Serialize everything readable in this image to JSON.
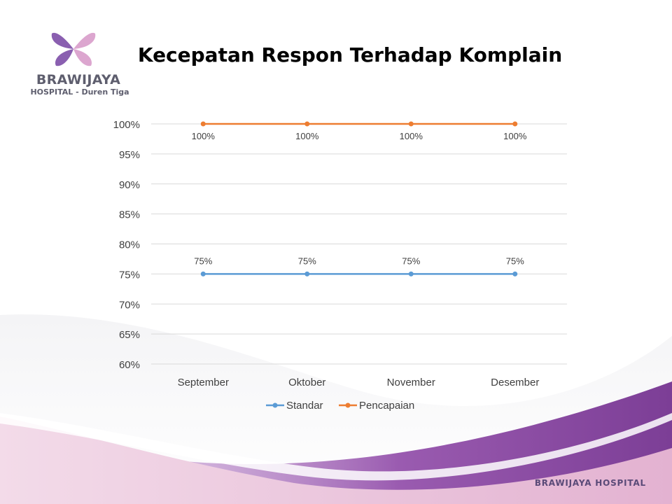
{
  "logo": {
    "name": "BRAWIJAYA",
    "subtitle": "HOSPITAL - Duren Tiga",
    "colors": {
      "left_petal": "#8a5fb0",
      "right_petal": "#dca6cf"
    }
  },
  "slide": {
    "title": "Kecepatan Respon Terhadap Komplain"
  },
  "footer": {
    "brand": "BRAWIJAYA HOSPITAL"
  },
  "theme": {
    "wave_purple": "#8b4fa0",
    "wave_pink": "#e6b3d3",
    "grid": "#d9d9d9",
    "text": "#404040"
  },
  "chart_data": {
    "type": "line",
    "categories": [
      "September",
      "Oktober",
      "November",
      "Desember"
    ],
    "series": [
      {
        "name": "Standar",
        "values": [
          75,
          75,
          75,
          75
        ],
        "labels": [
          "75%",
          "75%",
          "75%",
          "75%"
        ],
        "color": "#5b9bd5"
      },
      {
        "name": "Pencapaian",
        "values": [
          100,
          100,
          100,
          100
        ],
        "labels": [
          "100%",
          "100%",
          "100%",
          "100%"
        ],
        "color": "#ed7d31"
      }
    ],
    "ylim": [
      60,
      100
    ],
    "ytick_labels": [
      "100%",
      "95%",
      "90%",
      "85%",
      "80%",
      "75%",
      "70%",
      "65%",
      "60%"
    ],
    "legend": "bottom",
    "grid": true
  }
}
